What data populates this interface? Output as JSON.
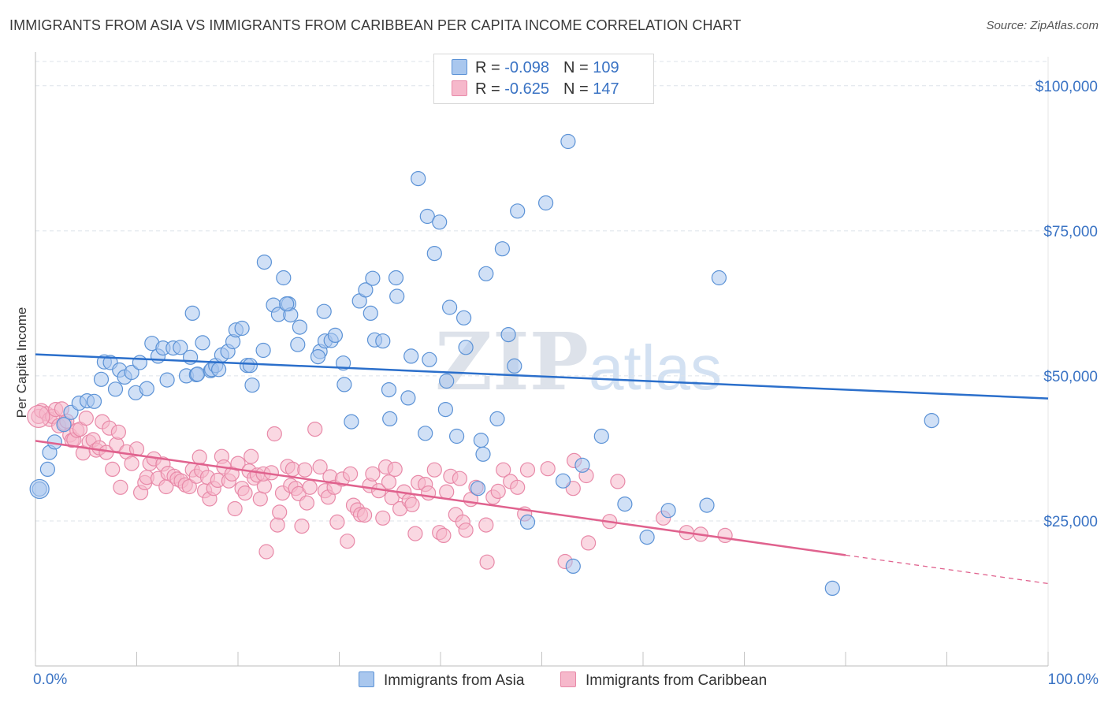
{
  "header": {
    "title": "IMMIGRANTS FROM ASIA VS IMMIGRANTS FROM CARIBBEAN PER CAPITA INCOME CORRELATION CHART",
    "source": "Source: ZipAtlas.com"
  },
  "watermark": {
    "zip": "ZIP",
    "atlas": "atlas"
  },
  "legend": {
    "rows": [
      {
        "r_label": "R = ",
        "r_value": "-0.098",
        "n_label": "N = ",
        "n_value": "109",
        "color": "#a9c7ee"
      },
      {
        "r_label": "R = ",
        "r_value": "-0.625",
        "n_label": "N = ",
        "n_value": "147",
        "color": "#f6b8cb"
      }
    ]
  },
  "colors": {
    "asia_fill": "#a9c7ee",
    "asia_stroke": "#5b92d6",
    "asia_line": "#2b6fcb",
    "carib_fill": "#f6b8cb",
    "carib_stroke": "#e889a8",
    "carib_line": "#e0628e",
    "grid": "#dde3ea",
    "axis_label": "#3a73c4"
  },
  "chart_data": {
    "type": "scatter",
    "title": "IMMIGRANTS FROM ASIA VS IMMIGRANTS FROM CARIBBEAN PER CAPITA INCOME CORRELATION CHART",
    "xlabel": "",
    "ylabel": "Per Capita Income",
    "xlim": [
      0,
      100
    ],
    "ylim": [
      0,
      105000
    ],
    "x_tick_labels": [
      "0.0%",
      "100.0%"
    ],
    "y_ticks": [
      25000,
      50000,
      75000,
      100000
    ],
    "y_tick_labels": [
      "$25,000",
      "$50,000",
      "$75,000",
      "$100,000"
    ],
    "grid": true,
    "legend_position": "top-center",
    "series": [
      {
        "name": "Immigrants from Asia",
        "r": -0.098,
        "n": 109,
        "trend": {
          "x": [
            0,
            100
          ],
          "y": [
            53700,
            46100
          ]
        },
        "points": [
          [
            0.4,
            30500
          ],
          [
            1.2,
            33900
          ],
          [
            1.4,
            36800
          ],
          [
            1.9,
            38600
          ],
          [
            2.8,
            41600
          ],
          [
            3.5,
            43700
          ],
          [
            4.3,
            45300
          ],
          [
            5.1,
            45700
          ],
          [
            5.8,
            45600
          ],
          [
            6.5,
            49400
          ],
          [
            6.8,
            52400
          ],
          [
            7.4,
            52300
          ],
          [
            7.9,
            47700
          ],
          [
            8.3,
            51000
          ],
          [
            8.8,
            49800
          ],
          [
            9.5,
            50600
          ],
          [
            9.9,
            47100
          ],
          [
            10.3,
            52300
          ],
          [
            11.0,
            47800
          ],
          [
            11.5,
            55600
          ],
          [
            12.1,
            53400
          ],
          [
            12.6,
            54800
          ],
          [
            13.0,
            49300
          ],
          [
            13.6,
            54800
          ],
          [
            14.3,
            54900
          ],
          [
            14.9,
            50000
          ],
          [
            15.3,
            53200
          ],
          [
            15.5,
            60800
          ],
          [
            15.9,
            50200
          ],
          [
            16.0,
            50300
          ],
          [
            16.5,
            55700
          ],
          [
            17.3,
            50900
          ],
          [
            17.4,
            51100
          ],
          [
            17.8,
            51800
          ],
          [
            18.1,
            51100
          ],
          [
            18.4,
            53600
          ],
          [
            19.0,
            54200
          ],
          [
            19.5,
            55900
          ],
          [
            19.8,
            57900
          ],
          [
            20.4,
            58200
          ],
          [
            20.9,
            51800
          ],
          [
            21.2,
            51800
          ],
          [
            21.4,
            48400
          ],
          [
            22.5,
            54400
          ],
          [
            22.6,
            69600
          ],
          [
            23.5,
            62200
          ],
          [
            24.0,
            60600
          ],
          [
            24.5,
            66900
          ],
          [
            25.0,
            62400
          ],
          [
            25.2,
            60500
          ],
          [
            24.8,
            62400
          ],
          [
            25.9,
            55400
          ],
          [
            26.1,
            58400
          ],
          [
            28.1,
            54200
          ],
          [
            28.5,
            61100
          ],
          [
            27.9,
            53300
          ],
          [
            28.6,
            56000
          ],
          [
            29.2,
            56100
          ],
          [
            29.6,
            57000
          ],
          [
            30.4,
            52200
          ],
          [
            31.2,
            42100
          ],
          [
            30.5,
            48500
          ],
          [
            32.0,
            62900
          ],
          [
            32.6,
            64800
          ],
          [
            33.1,
            60800
          ],
          [
            33.5,
            56200
          ],
          [
            34.3,
            56000
          ],
          [
            35.0,
            42600
          ],
          [
            33.3,
            66800
          ],
          [
            34.9,
            47600
          ],
          [
            35.6,
            66900
          ],
          [
            35.7,
            63700
          ],
          [
            36.8,
            46200
          ],
          [
            37.1,
            53400
          ],
          [
            37.8,
            84000
          ],
          [
            38.5,
            40100
          ],
          [
            38.7,
            77500
          ],
          [
            38.9,
            52800
          ],
          [
            39.4,
            71100
          ],
          [
            39.9,
            76500
          ],
          [
            40.5,
            44200
          ],
          [
            40.6,
            49100
          ],
          [
            40.9,
            61800
          ],
          [
            41.6,
            39600
          ],
          [
            42.3,
            60000
          ],
          [
            42.5,
            54900
          ],
          [
            43.7,
            30600
          ],
          [
            44.0,
            38900
          ],
          [
            44.2,
            36500
          ],
          [
            44.5,
            67600
          ],
          [
            45.6,
            42600
          ],
          [
            46.1,
            71900
          ],
          [
            46.7,
            57100
          ],
          [
            47.3,
            51700
          ],
          [
            47.6,
            78400
          ],
          [
            48.6,
            24800
          ],
          [
            50.4,
            79800
          ],
          [
            52.1,
            31900
          ],
          [
            52.6,
            90400
          ],
          [
            53.1,
            17200
          ],
          [
            54.0,
            34600
          ],
          [
            55.9,
            39600
          ],
          [
            58.2,
            27900
          ],
          [
            60.4,
            22200
          ],
          [
            62.5,
            26800
          ],
          [
            66.3,
            27700
          ],
          [
            67.5,
            66900
          ],
          [
            78.7,
            13400
          ],
          [
            88.5,
            42300
          ]
        ]
      },
      {
        "name": "Immigrants from Caribbean",
        "r": -0.625,
        "n": 147,
        "trend": {
          "x": [
            0,
            80
          ],
          "y": [
            38800,
            19100
          ]
        },
        "trend_extension": {
          "x": [
            80,
            100
          ],
          "y": [
            19100,
            14200
          ]
        },
        "points": [
          [
            0.3,
            43000
          ],
          [
            0.6,
            44000
          ],
          [
            1.1,
            43500
          ],
          [
            1.4,
            42500
          ],
          [
            1.7,
            43000
          ],
          [
            2.0,
            44200
          ],
          [
            2.3,
            41400
          ],
          [
            2.6,
            44300
          ],
          [
            2.9,
            41800
          ],
          [
            3.1,
            42200
          ],
          [
            3.4,
            39800
          ],
          [
            3.6,
            38900
          ],
          [
            3.8,
            39000
          ],
          [
            4.1,
            40600
          ],
          [
            4.4,
            40800
          ],
          [
            4.7,
            36700
          ],
          [
            5.0,
            42700
          ],
          [
            5.3,
            38600
          ],
          [
            5.7,
            39000
          ],
          [
            6.0,
            37200
          ],
          [
            6.3,
            37600
          ],
          [
            6.6,
            42100
          ],
          [
            7.0,
            36800
          ],
          [
            7.3,
            41000
          ],
          [
            7.6,
            33900
          ],
          [
            8.0,
            38200
          ],
          [
            8.2,
            40300
          ],
          [
            8.4,
            30800
          ],
          [
            9.0,
            36900
          ],
          [
            9.5,
            34900
          ],
          [
            10.0,
            37400
          ],
          [
            10.4,
            29900
          ],
          [
            10.8,
            31600
          ],
          [
            11.0,
            32500
          ],
          [
            11.3,
            34900
          ],
          [
            11.7,
            35700
          ],
          [
            12.1,
            32300
          ],
          [
            12.6,
            34800
          ],
          [
            12.9,
            30900
          ],
          [
            13.1,
            33200
          ],
          [
            13.7,
            32700
          ],
          [
            14.0,
            32200
          ],
          [
            14.4,
            31900
          ],
          [
            14.8,
            31200
          ],
          [
            15.2,
            30900
          ],
          [
            15.5,
            33800
          ],
          [
            15.9,
            32700
          ],
          [
            16.2,
            36000
          ],
          [
            16.4,
            33700
          ],
          [
            16.7,
            30200
          ],
          [
            17.0,
            32500
          ],
          [
            17.2,
            28800
          ],
          [
            17.6,
            30600
          ],
          [
            18.0,
            32000
          ],
          [
            18.4,
            36100
          ],
          [
            18.6,
            34300
          ],
          [
            19.1,
            31900
          ],
          [
            19.4,
            33100
          ],
          [
            19.7,
            27100
          ],
          [
            20.0,
            34900
          ],
          [
            20.4,
            30600
          ],
          [
            20.7,
            29800
          ],
          [
            21.1,
            33600
          ],
          [
            21.3,
            36100
          ],
          [
            21.6,
            32400
          ],
          [
            21.9,
            32900
          ],
          [
            22.2,
            28800
          ],
          [
            22.6,
            31000
          ],
          [
            22.8,
            19700
          ],
          [
            22.5,
            33100
          ],
          [
            23.3,
            33300
          ],
          [
            23.6,
            40000
          ],
          [
            23.9,
            24300
          ],
          [
            24.1,
            26500
          ],
          [
            24.4,
            29800
          ],
          [
            24.9,
            34400
          ],
          [
            25.2,
            31100
          ],
          [
            25.4,
            33900
          ],
          [
            25.7,
            30600
          ],
          [
            26.0,
            29700
          ],
          [
            26.3,
            24100
          ],
          [
            26.6,
            33800
          ],
          [
            26.8,
            28100
          ],
          [
            27.1,
            30800
          ],
          [
            27.6,
            40800
          ],
          [
            28.1,
            34300
          ],
          [
            28.6,
            30200
          ],
          [
            28.9,
            29100
          ],
          [
            29.1,
            32600
          ],
          [
            29.5,
            30800
          ],
          [
            29.8,
            24800
          ],
          [
            30.3,
            32200
          ],
          [
            30.8,
            21500
          ],
          [
            31.1,
            33100
          ],
          [
            31.4,
            27700
          ],
          [
            31.8,
            26900
          ],
          [
            32.1,
            26100
          ],
          [
            32.5,
            26000
          ],
          [
            33.0,
            31100
          ],
          [
            33.3,
            33100
          ],
          [
            33.9,
            30200
          ],
          [
            34.3,
            25500
          ],
          [
            34.6,
            34300
          ],
          [
            34.9,
            31700
          ],
          [
            35.2,
            29000
          ],
          [
            35.5,
            33900
          ],
          [
            36.0,
            27100
          ],
          [
            36.4,
            30000
          ],
          [
            36.9,
            28500
          ],
          [
            37.2,
            27800
          ],
          [
            37.5,
            22800
          ],
          [
            37.8,
            31600
          ],
          [
            38.5,
            31300
          ],
          [
            38.8,
            29800
          ],
          [
            39.4,
            33800
          ],
          [
            39.9,
            23000
          ],
          [
            40.3,
            22500
          ],
          [
            40.6,
            30000
          ],
          [
            41.0,
            32700
          ],
          [
            41.5,
            26100
          ],
          [
            41.9,
            32300
          ],
          [
            42.2,
            24800
          ],
          [
            42.5,
            23400
          ],
          [
            43.0,
            28700
          ],
          [
            43.5,
            30800
          ],
          [
            44.5,
            24300
          ],
          [
            44.6,
            17900
          ],
          [
            45.2,
            29100
          ],
          [
            45.7,
            30100
          ],
          [
            46.2,
            33800
          ],
          [
            46.9,
            31800
          ],
          [
            47.6,
            30800
          ],
          [
            48.3,
            26200
          ],
          [
            48.6,
            33800
          ],
          [
            50.6,
            34000
          ],
          [
            52.3,
            18000
          ],
          [
            53.1,
            30600
          ],
          [
            54.6,
            21200
          ],
          [
            56.7,
            24900
          ],
          [
            57.5,
            31800
          ],
          [
            62.0,
            25500
          ],
          [
            64.3,
            23000
          ],
          [
            65.7,
            22700
          ],
          [
            68.1,
            22500
          ],
          [
            53.2,
            35400
          ],
          [
            54.4,
            32800
          ]
        ]
      }
    ]
  }
}
